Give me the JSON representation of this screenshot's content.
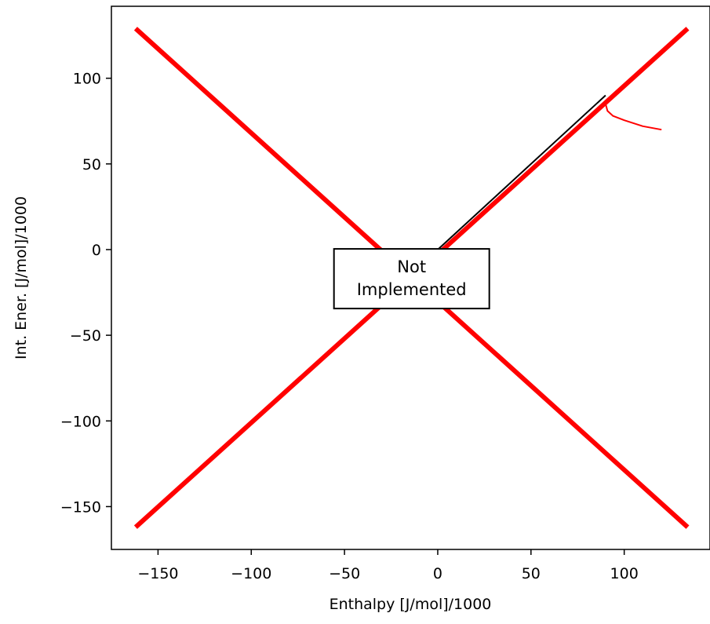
{
  "chart_data": {
    "type": "line",
    "xlabel": "Enthalpy [J/mol]/1000",
    "ylabel": "Int. Ener. [J/mol]/1000",
    "xlim": [
      -175,
      146
    ],
    "ylim": [
      -175,
      142
    ],
    "xticks": [
      -150,
      -100,
      -50,
      0,
      50,
      100
    ],
    "yticks": [
      -150,
      -100,
      -50,
      0,
      50,
      100
    ],
    "xtick_labels": [
      "−150",
      "−100",
      "−50",
      "0",
      "50",
      "100"
    ],
    "ytick_labels": [
      "−150",
      "−100",
      "−50",
      "0",
      "50",
      "100"
    ],
    "grid": false,
    "annotation": {
      "lines": [
        "Not",
        "Implemented"
      ],
      "x": -14,
      "y": -17
    },
    "series": [
      {
        "color": "#ff0000",
        "width": 6,
        "points": [
          [
            -162,
            -162
          ],
          [
            134,
            129
          ]
        ]
      },
      {
        "color": "#ff0000",
        "width": 6,
        "points": [
          [
            -162,
            129
          ],
          [
            134,
            -162
          ]
        ]
      },
      {
        "color": "#000000",
        "width": 2,
        "points": [
          [
            0,
            0
          ],
          [
            90,
            90
          ]
        ]
      },
      {
        "color": "#ff0000",
        "width": 2,
        "points": [
          [
            90,
            85
          ],
          [
            91,
            81
          ],
          [
            94,
            78
          ],
          [
            100,
            75.5
          ],
          [
            110,
            72
          ],
          [
            120,
            70
          ]
        ]
      }
    ]
  }
}
